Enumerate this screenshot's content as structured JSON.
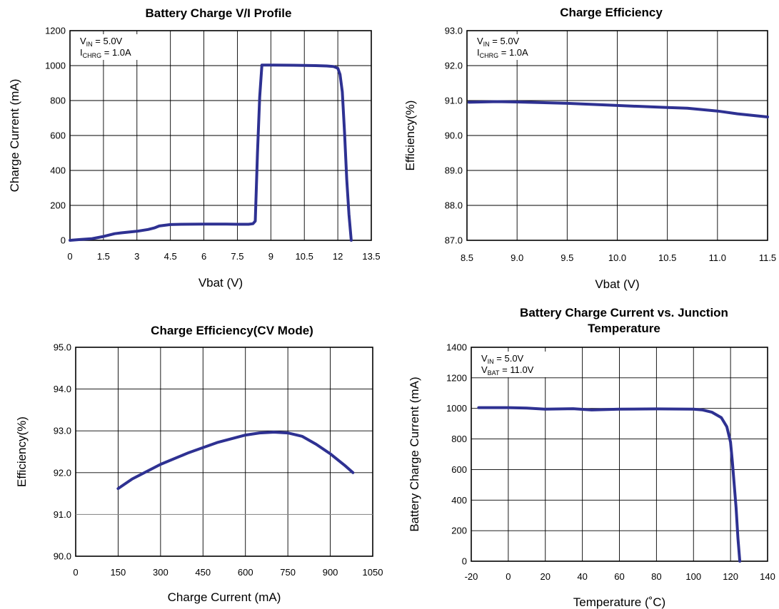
{
  "chart_data": [
    {
      "type": "line",
      "title": [
        "Battery Charge V/I Profile"
      ],
      "xlabel": "Vbat (V)",
      "ylabel": "Charge Current (mA)",
      "xlim": [
        0,
        13.5
      ],
      "ylim": [
        0,
        1200
      ],
      "xticks": [
        0,
        1.5,
        3,
        4.5,
        6,
        7.5,
        9,
        10.5,
        12,
        13.5
      ],
      "xtick_labels": [
        "0",
        "1.5",
        "3",
        "4.5",
        "6",
        "7.5",
        "9",
        "10.5",
        "12",
        "13.5"
      ],
      "yticks": [
        0,
        200,
        400,
        600,
        800,
        1000,
        1200
      ],
      "ytick_labels": [
        "0",
        "200",
        "400",
        "600",
        "800",
        "1000",
        "1200"
      ],
      "grid": true,
      "annotation": {
        "line1": {
          "main": "V",
          "sub": "IN",
          "rest": " = 5.0V"
        },
        "line2": {
          "main": "I",
          "sub": "CHRG",
          "rest": " = 1.0A"
        }
      },
      "series": [
        {
          "color": "#2e3192",
          "x": [
            0,
            0.5,
            1.0,
            1.5,
            2.0,
            2.3,
            3.0,
            3.5,
            3.8,
            4.0,
            4.5,
            5.0,
            6.0,
            7.0,
            7.5,
            8.0,
            8.2,
            8.3,
            8.4,
            8.5,
            8.6,
            9.0,
            10.0,
            11.0,
            11.5,
            11.8,
            12.0,
            12.1,
            12.2,
            12.3,
            12.4,
            12.5,
            12.6
          ],
          "y": [
            0,
            5,
            10,
            22,
            38,
            43,
            52,
            62,
            72,
            82,
            90,
            92,
            93,
            93,
            92,
            92,
            95,
            110,
            500,
            820,
            1003,
            1003,
            1002,
            1000,
            998,
            995,
            985,
            950,
            850,
            620,
            350,
            150,
            0
          ]
        }
      ]
    },
    {
      "type": "line",
      "title": [
        "Charge Efficiency"
      ],
      "xlabel": "Vbat (V)",
      "ylabel": "Efficiency(%)",
      "xlim": [
        8.5,
        11.5
      ],
      "ylim": [
        87.0,
        93.0
      ],
      "xticks": [
        8.5,
        9.0,
        9.5,
        10.0,
        10.5,
        11.0,
        11.5
      ],
      "xtick_labels": [
        "8.5",
        "9.0",
        "9.5",
        "10.0",
        "10.5",
        "11.0",
        "11.5"
      ],
      "yticks": [
        87.0,
        88.0,
        89.0,
        90.0,
        91.0,
        92.0,
        93.0
      ],
      "ytick_labels": [
        "87.0",
        "88.0",
        "89.0",
        "90.0",
        "91.0",
        "92.0",
        "93.0"
      ],
      "grid": true,
      "annotation": {
        "line1": {
          "main": "V",
          "sub": "IN",
          "rest": " = 5.0V"
        },
        "line2": {
          "main": "I",
          "sub": "CHRG",
          "rest": " = 1.0A"
        }
      },
      "series": [
        {
          "color": "#2e3192",
          "x": [
            8.52,
            8.8,
            9.0,
            9.5,
            10.0,
            10.5,
            10.7,
            11.0,
            11.2,
            11.5
          ],
          "y": [
            90.95,
            90.97,
            90.96,
            90.92,
            90.86,
            90.8,
            90.78,
            90.7,
            90.62,
            90.53
          ]
        }
      ]
    },
    {
      "type": "line",
      "title": [
        "Charge Efficiency(CV Mode)"
      ],
      "xlabel": "Charge Current (mA)",
      "ylabel": "Efficiency(%)",
      "xlim": [
        0,
        1050
      ],
      "ylim": [
        90.0,
        95.0
      ],
      "xticks": [
        0,
        150,
        300,
        450,
        600,
        750,
        900,
        1050
      ],
      "xtick_labels": [
        "0",
        "150",
        "300",
        "450",
        "600",
        "750",
        "900",
        "1050"
      ],
      "yticks": [
        90.0,
        91.0,
        92.0,
        93.0,
        94.0,
        95.0
      ],
      "ytick_labels": [
        "90.0",
        "91.0",
        "92.0",
        "93.0",
        "94.0",
        "95.0"
      ],
      "grid": true,
      "series": [
        {
          "color": "#2e3192",
          "x": [
            150,
            200,
            300,
            400,
            500,
            600,
            650,
            700,
            750,
            800,
            850,
            900,
            950,
            980
          ],
          "y": [
            91.62,
            91.85,
            92.2,
            92.48,
            92.72,
            92.9,
            92.95,
            92.97,
            92.95,
            92.87,
            92.68,
            92.45,
            92.18,
            92.0
          ]
        }
      ]
    },
    {
      "type": "line",
      "title": [
        "Battery Charge Current vs. Junction",
        "Temperature"
      ],
      "xlabel": "Temperature (˚C)",
      "ylabel": "Battery Charge Current (mA)",
      "xlim": [
        -20,
        140
      ],
      "ylim": [
        0,
        1400
      ],
      "xticks": [
        -20,
        0,
        20,
        40,
        60,
        80,
        100,
        120,
        140
      ],
      "xtick_labels": [
        "-20",
        "0",
        "20",
        "40",
        "60",
        "80",
        "100",
        "120",
        "140"
      ],
      "yticks": [
        0,
        200,
        400,
        600,
        800,
        1000,
        1200,
        1400
      ],
      "ytick_labels": [
        "0",
        "200",
        "400",
        "600",
        "800",
        "1000",
        "1200",
        "1400"
      ],
      "grid": true,
      "annotation": {
        "line1": {
          "main": "V",
          "sub": "IN",
          "rest": " = 5.0V"
        },
        "line2": {
          "main": "V",
          "sub": "BAT",
          "rest": " = 11.0V"
        }
      },
      "series": [
        {
          "color": "#2e3192",
          "x": [
            -16,
            0,
            10,
            20,
            35,
            45,
            60,
            80,
            100,
            105,
            110,
            115,
            118,
            120,
            121,
            122,
            123,
            124,
            125
          ],
          "y": [
            1005,
            1005,
            1002,
            995,
            998,
            990,
            995,
            997,
            995,
            990,
            975,
            940,
            880,
            780,
            650,
            500,
            350,
            150,
            0
          ]
        }
      ]
    }
  ]
}
